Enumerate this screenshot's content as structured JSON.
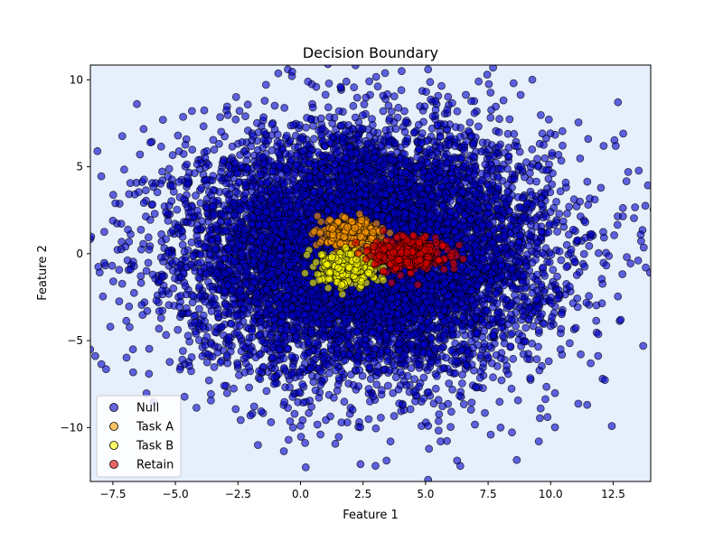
{
  "chart_data": {
    "type": "scatter",
    "title": "Decision Boundary",
    "xlabel": "Feature 1",
    "ylabel": "Feature 2",
    "xlim": [
      -8.4,
      14.0
    ],
    "ylim": [
      -13.1,
      10.85
    ],
    "x_ticks": [
      -7.5,
      -5.0,
      -2.5,
      0.0,
      2.5,
      5.0,
      7.5,
      10.0,
      12.5
    ],
    "x_tick_labels": [
      "−7.5",
      "−5.0",
      "−2.5",
      "0.0",
      "2.5",
      "5.0",
      "7.5",
      "10.0",
      "12.5"
    ],
    "y_ticks": [
      -10,
      -5,
      0,
      5,
      10
    ],
    "y_tick_labels": [
      "−10",
      "−5",
      "0",
      "5",
      "10"
    ],
    "grid": false,
    "legend_position": "lower-left",
    "background_color": "#e6effc",
    "series": [
      {
        "name": "Null",
        "color": "#0000cc",
        "distribution": {
          "center": [
            2.7,
            0.1
          ],
          "std": [
            3.6,
            3.5
          ],
          "count": 9000
        },
        "points": [
          [
            -7.5,
            1.9
          ],
          [
            -7.6,
            -4.2
          ],
          [
            -6.7,
            -5.5
          ],
          [
            -6.0,
            6.4
          ],
          [
            -5.5,
            7.7
          ],
          [
            -4.9,
            6.8
          ],
          [
            -2.0,
            -9.3
          ],
          [
            -1.7,
            -11.0
          ],
          [
            -0.3,
            -10.0
          ],
          [
            0.3,
            9.9
          ],
          [
            0.8,
            -10.4
          ],
          [
            1.1,
            10.9
          ],
          [
            1.6,
            9.6
          ],
          [
            2.4,
            -12.1
          ],
          [
            3.0,
            -12.2
          ],
          [
            3.6,
            -10.8
          ],
          [
            5.1,
            -13.0
          ],
          [
            5.1,
            10.6
          ],
          [
            5.6,
            -10.8
          ],
          [
            7.7,
            10.7
          ],
          [
            8.0,
            -10.0
          ],
          [
            9.6,
            -8.9
          ],
          [
            11.5,
            6.6
          ],
          [
            12.6,
            6.2
          ],
          [
            13.1,
            4.7
          ],
          [
            13.6,
            1.1
          ],
          [
            13.7,
            -5.3
          ],
          [
            13.8,
            -0.8
          ],
          [
            12.8,
            -3.8
          ],
          [
            11.6,
            -6.3
          ],
          [
            -7.4,
            2.9
          ],
          [
            -6.8,
            -0.9
          ],
          [
            -7.0,
            0.4
          ],
          [
            0.0,
            -9.9
          ]
        ]
      },
      {
        "name": "Task A",
        "color": "#ff9900",
        "distribution": {
          "center": [
            2.0,
            1.1
          ],
          "std": [
            0.55,
            0.45
          ],
          "count": 300
        }
      },
      {
        "name": "Task B",
        "color": "#ffff00",
        "distribution": {
          "center": [
            1.9,
            -0.8
          ],
          "std": [
            0.55,
            0.5
          ],
          "count": 300
        }
      },
      {
        "name": "Retain",
        "color": "#dd0000",
        "distribution": {
          "center": [
            4.4,
            0.0
          ],
          "std": [
            0.7,
            0.45
          ],
          "count": 350
        }
      }
    ]
  }
}
